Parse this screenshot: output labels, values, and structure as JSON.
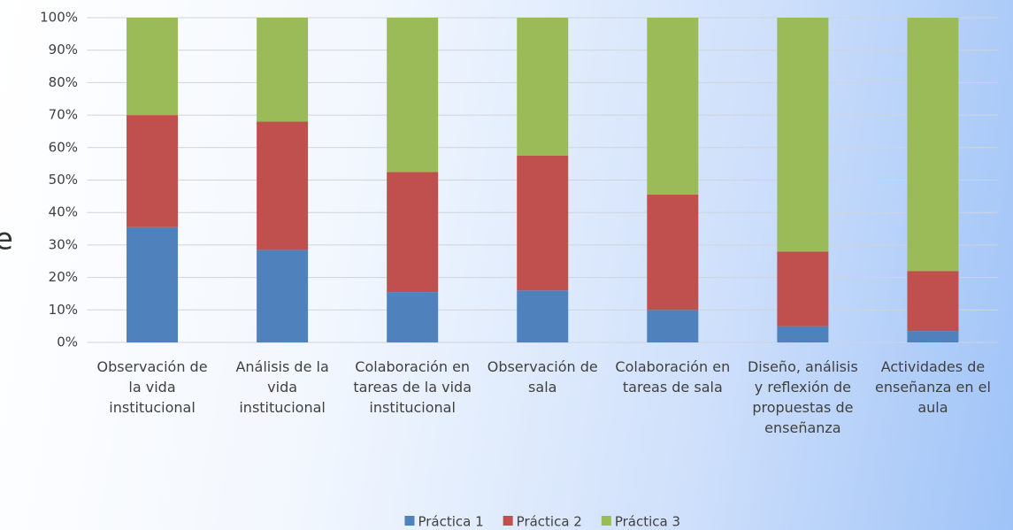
{
  "chart_data": {
    "type": "stacked_bar_percent",
    "background_text": "e",
    "categories": [
      "Observación de la vida institucional",
      "Análisis de la vida institucional",
      "Colaboración en tareas de la vida institucional",
      "Observación de sala",
      "Colaboración en tareas de sala",
      "Diseño, análisis y reflexión de propuestas de enseñanza",
      "Actividades de enseñanza en el aula"
    ],
    "series": [
      {
        "name": "Práctica 1",
        "color": "#4f81bd",
        "values": [
          35.5,
          28.5,
          15.5,
          16,
          10,
          5,
          3.5
        ]
      },
      {
        "name": "Práctica 2",
        "color": "#c0504d",
        "values": [
          34.5,
          39.5,
          37,
          41.5,
          35.5,
          23,
          18.5
        ]
      },
      {
        "name": "Práctica 3",
        "color": "#9bbb59",
        "values": [
          30,
          32,
          47.5,
          42.5,
          54.5,
          72,
          78
        ]
      }
    ],
    "ylim": [
      0,
      100
    ],
    "yticks": [
      {
        "value": 0,
        "label": "0%"
      },
      {
        "value": 10,
        "label": "10%"
      },
      {
        "value": 20,
        "label": "20%"
      },
      {
        "value": 30,
        "label": "30%"
      },
      {
        "value": 40,
        "label": "40%"
      },
      {
        "value": 50,
        "label": "50%"
      },
      {
        "value": 60,
        "label": "60%"
      },
      {
        "value": 70,
        "label": "70%"
      },
      {
        "value": 80,
        "label": "80%"
      },
      {
        "value": 90,
        "label": "90%"
      },
      {
        "value": 100,
        "label": "100%"
      }
    ],
    "grid": true,
    "legend": "bottom"
  }
}
